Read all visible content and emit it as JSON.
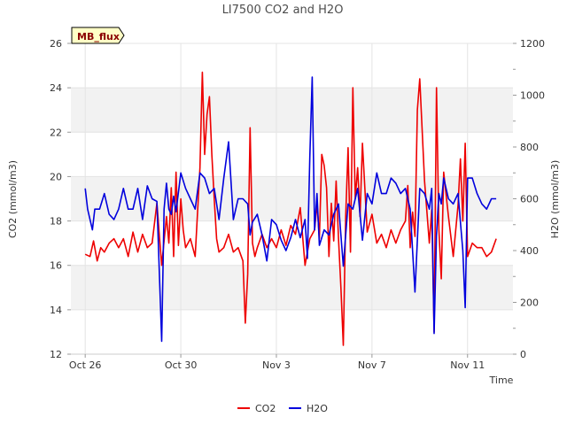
{
  "chart_data": {
    "type": "line",
    "title": "LI7500 CO2 and H2O",
    "badge": "MB_flux",
    "xlabel": "Time",
    "ylabel_left": "CO2 (mmol/m3)",
    "ylabel_right": "H2O (mmol/m3)",
    "x_unit": "days since Oct 26",
    "xlim": [
      -0.6,
      17.9
    ],
    "ylim_left": [
      12,
      26
    ],
    "ylim_right": [
      0,
      1200
    ],
    "x_ticks": [
      {
        "value": 0,
        "label": "Oct 26"
      },
      {
        "value": 4,
        "label": "Oct 30"
      },
      {
        "value": 8,
        "label": "Nov 3"
      },
      {
        "value": 12,
        "label": "Nov 7"
      },
      {
        "value": 16,
        "label": "Nov 11"
      }
    ],
    "y_ticks_left": [
      12,
      14,
      16,
      18,
      20,
      22,
      24,
      26
    ],
    "y_ticks_right": [
      0,
      200,
      400,
      600,
      800,
      1000,
      1200
    ],
    "bands_left": [
      [
        14,
        16
      ],
      [
        18,
        20
      ],
      [
        22,
        24
      ]
    ],
    "legend": [
      {
        "name": "CO2",
        "color": "#ee0000"
      },
      {
        "name": "H2O",
        "color": "#0000dd"
      }
    ],
    "series": [
      {
        "name": "CO2",
        "axis": "left",
        "color": "#ee0000",
        "x": [
          0.0,
          0.2,
          0.35,
          0.5,
          0.65,
          0.8,
          1.0,
          1.2,
          1.4,
          1.6,
          1.8,
          2.0,
          2.2,
          2.4,
          2.6,
          2.8,
          3.0,
          3.2,
          3.4,
          3.5,
          3.6,
          3.7,
          3.8,
          3.9,
          4.0,
          4.1,
          4.2,
          4.4,
          4.6,
          4.8,
          4.9,
          5.0,
          5.1,
          5.2,
          5.3,
          5.4,
          5.5,
          5.6,
          5.8,
          6.0,
          6.2,
          6.4,
          6.6,
          6.7,
          6.8,
          6.9,
          7.0,
          7.1,
          7.2,
          7.4,
          7.6,
          7.8,
          8.0,
          8.2,
          8.4,
          8.6,
          8.8,
          9.0,
          9.2,
          9.4,
          9.6,
          9.7,
          9.8,
          9.9,
          10.0,
          10.1,
          10.2,
          10.3,
          10.4,
          10.5,
          10.6,
          10.7,
          10.8,
          10.9,
          11.0,
          11.1,
          11.2,
          11.3,
          11.4,
          11.5,
          11.6,
          11.8,
          12.0,
          12.2,
          12.4,
          12.6,
          12.8,
          13.0,
          13.2,
          13.4,
          13.5,
          13.6,
          13.7,
          13.8,
          13.9,
          14.0,
          14.2,
          14.4,
          14.5,
          14.6,
          14.7,
          14.8,
          14.9,
          15.0,
          15.2,
          15.4,
          15.6,
          15.7,
          15.8,
          15.9,
          16.0,
          16.2,
          16.4,
          16.6,
          16.8,
          17.0,
          17.2
        ],
        "values": [
          16.5,
          16.4,
          17.1,
          16.2,
          16.8,
          16.6,
          17.0,
          17.2,
          16.8,
          17.2,
          16.4,
          17.5,
          16.6,
          17.4,
          16.8,
          17.0,
          18.8,
          16.0,
          18.2,
          17.0,
          19.5,
          16.4,
          20.2,
          16.9,
          19.0,
          17.6,
          16.8,
          17.2,
          16.4,
          20.4,
          24.7,
          21.0,
          22.8,
          23.6,
          21.0,
          19.0,
          17.2,
          16.6,
          16.8,
          17.4,
          16.6,
          16.8,
          16.2,
          13.4,
          15.6,
          22.2,
          17.0,
          16.4,
          16.8,
          17.4,
          16.8,
          17.2,
          16.8,
          17.6,
          16.9,
          17.8,
          17.4,
          18.6,
          16.0,
          17.2,
          17.6,
          18.8,
          17.2,
          21.0,
          20.5,
          19.5,
          16.4,
          18.8,
          17.1,
          19.8,
          17.2,
          15.0,
          12.4,
          18.2,
          21.3,
          16.6,
          24.0,
          19.0,
          20.4,
          18.2,
          21.5,
          17.5,
          18.3,
          17.0,
          17.4,
          16.8,
          17.6,
          17.0,
          17.6,
          18.0,
          19.6,
          16.8,
          18.4,
          17.3,
          23.0,
          24.4,
          19.8,
          17.0,
          18.5,
          13.0,
          24.0,
          17.6,
          15.4,
          20.2,
          18.2,
          16.4,
          18.7,
          20.8,
          18.0,
          21.5,
          16.4,
          17.0,
          16.8,
          16.8,
          16.4,
          16.6,
          17.2
        ]
      },
      {
        "name": "H2O",
        "axis": "right",
        "color": "#0000dd",
        "x": [
          0.0,
          0.1,
          0.2,
          0.3,
          0.4,
          0.6,
          0.8,
          1.0,
          1.2,
          1.4,
          1.6,
          1.8,
          2.0,
          2.2,
          2.4,
          2.6,
          2.8,
          3.0,
          3.2,
          3.3,
          3.4,
          3.5,
          3.6,
          3.7,
          3.8,
          4.0,
          4.2,
          4.4,
          4.6,
          4.8,
          5.0,
          5.2,
          5.4,
          5.6,
          5.8,
          6.0,
          6.2,
          6.4,
          6.6,
          6.8,
          6.9,
          7.0,
          7.2,
          7.4,
          7.6,
          7.8,
          8.0,
          8.2,
          8.4,
          8.6,
          8.8,
          9.0,
          9.2,
          9.3,
          9.4,
          9.5,
          9.6,
          9.7,
          9.8,
          10.0,
          10.2,
          10.4,
          10.6,
          10.8,
          11.0,
          11.2,
          11.4,
          11.6,
          11.8,
          12.0,
          12.2,
          12.4,
          12.6,
          12.8,
          13.0,
          13.2,
          13.4,
          13.6,
          13.8,
          14.0,
          14.2,
          14.4,
          14.5,
          14.6,
          14.7,
          14.8,
          14.9,
          15.0,
          15.2,
          15.4,
          15.6,
          15.8,
          15.9,
          16.0,
          16.2,
          16.4,
          16.6,
          16.8,
          17.0,
          17.2
        ],
        "values": [
          640,
          560,
          520,
          480,
          560,
          560,
          620,
          540,
          520,
          560,
          640,
          560,
          560,
          640,
          520,
          650,
          600,
          590,
          50,
          560,
          660,
          560,
          540,
          610,
          550,
          700,
          640,
          600,
          560,
          700,
          680,
          620,
          640,
          520,
          680,
          820,
          520,
          600,
          600,
          580,
          460,
          510,
          540,
          460,
          360,
          520,
          500,
          440,
          400,
          450,
          520,
          450,
          520,
          370,
          760,
          1070,
          480,
          620,
          420,
          480,
          460,
          540,
          580,
          340,
          580,
          560,
          640,
          440,
          620,
          580,
          700,
          620,
          620,
          680,
          660,
          620,
          640,
          560,
          240,
          640,
          620,
          560,
          640,
          80,
          460,
          620,
          580,
          680,
          600,
          580,
          620,
          400,
          180,
          680,
          680,
          620,
          580,
          560,
          600,
          600
        ]
      }
    ]
  }
}
